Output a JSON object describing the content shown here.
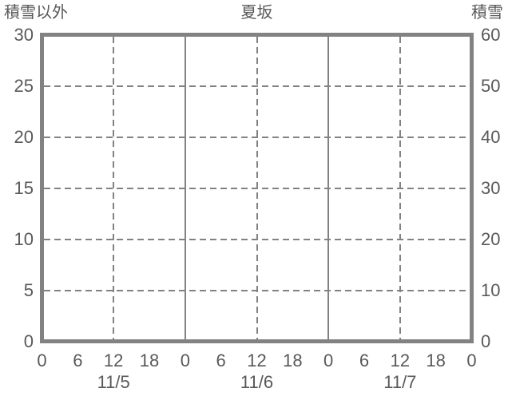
{
  "chart_data": {
    "type": "line",
    "title": "夏坂",
    "series": [],
    "left_axis": {
      "label": "積雪以外",
      "min": 0,
      "max": 30,
      "ticks": [
        0,
        5,
        10,
        15,
        20,
        25,
        30
      ]
    },
    "right_axis": {
      "label": "積雪",
      "min": 0,
      "max": 60,
      "ticks": [
        0,
        10,
        20,
        30,
        40,
        50,
        60
      ]
    },
    "x_axis": {
      "hours_span": 72,
      "hour_ticks": [
        {
          "hour": 0,
          "label": "0"
        },
        {
          "hour": 6,
          "label": "6"
        },
        {
          "hour": 12,
          "label": "12"
        },
        {
          "hour": 18,
          "label": "18"
        },
        {
          "hour": 24,
          "label": "0"
        },
        {
          "hour": 30,
          "label": "6"
        },
        {
          "hour": 36,
          "label": "12"
        },
        {
          "hour": 42,
          "label": "18"
        },
        {
          "hour": 48,
          "label": "0"
        },
        {
          "hour": 54,
          "label": "6"
        },
        {
          "hour": 60,
          "label": "12"
        },
        {
          "hour": 66,
          "label": "18"
        },
        {
          "hour": 72,
          "label": "0"
        }
      ],
      "date_labels": [
        {
          "label": "11/5",
          "center_hour": 12
        },
        {
          "label": "11/6",
          "center_hour": 36
        },
        {
          "label": "11/7",
          "center_hour": 60
        }
      ],
      "vertical_gridlines": [
        {
          "hour": 12,
          "style": "dashed"
        },
        {
          "hour": 24,
          "style": "solid"
        },
        {
          "hour": 36,
          "style": "dashed"
        },
        {
          "hour": 48,
          "style": "solid"
        },
        {
          "hour": 60,
          "style": "dashed"
        }
      ]
    },
    "horizontal_gridlines_left_values": [
      5,
      10,
      15,
      20,
      25
    ],
    "grid": true,
    "legend": "none",
    "colors": {
      "border": "#828282",
      "gridline": "#828282",
      "text": "#595959",
      "background": "#ffffff"
    }
  }
}
